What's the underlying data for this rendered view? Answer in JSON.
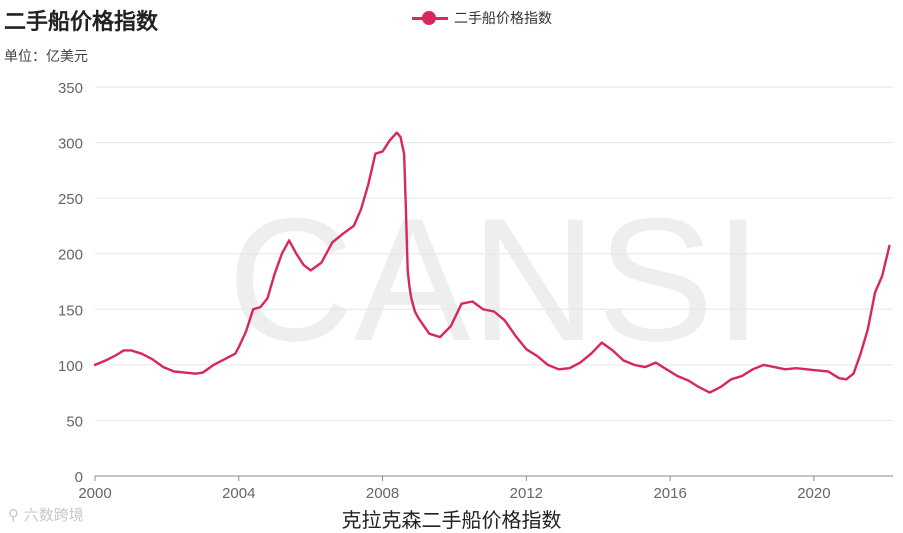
{
  "header": {
    "title": "二手船价格指数",
    "unit": "单位：亿美元",
    "caption": "克拉克森二手船价格指数",
    "watermark_logo": "六数跨境",
    "watermark_text": "CANSI"
  },
  "colors": {
    "series": "#d8275b",
    "grid": "#e6e6e6",
    "axis": "#888888",
    "watermark": "#eeeeee"
  },
  "chart_data": {
    "type": "line",
    "title": "二手船价格指数",
    "ylabel": "单位：亿美元",
    "ylim": [
      0,
      350
    ],
    "xlim": [
      2000,
      2022.2
    ],
    "yticks": [
      0,
      50,
      100,
      150,
      200,
      250,
      300,
      350
    ],
    "xticks": [
      2000,
      2004,
      2008,
      2012,
      2016,
      2020
    ],
    "grid": true,
    "legend_position": "top-center",
    "series": [
      {
        "name": "二手船价格指数",
        "x": [
          2000.0,
          2000.3,
          2000.6,
          2000.8,
          2001.0,
          2001.3,
          2001.6,
          2001.9,
          2002.2,
          2002.5,
          2002.8,
          2003.0,
          2003.3,
          2003.6,
          2003.9,
          2004.0,
          2004.2,
          2004.4,
          2004.6,
          2004.8,
          2005.0,
          2005.2,
          2005.4,
          2005.6,
          2005.8,
          2006.0,
          2006.3,
          2006.6,
          2006.9,
          2007.2,
          2007.4,
          2007.6,
          2007.8,
          2008.0,
          2008.2,
          2008.4,
          2008.5,
          2008.6,
          2008.65,
          2008.7,
          2008.75,
          2008.8,
          2008.9,
          2009.0,
          2009.3,
          2009.6,
          2009.9,
          2010.2,
          2010.5,
          2010.8,
          2011.1,
          2011.4,
          2011.7,
          2012.0,
          2012.3,
          2012.6,
          2012.9,
          2013.2,
          2013.5,
          2013.8,
          2014.1,
          2014.4,
          2014.7,
          2015.0,
          2015.3,
          2015.6,
          2015.9,
          2016.2,
          2016.5,
          2016.8,
          2017.1,
          2017.4,
          2017.7,
          2018.0,
          2018.3,
          2018.6,
          2018.9,
          2019.2,
          2019.5,
          2019.8,
          2020.1,
          2020.4,
          2020.7,
          2020.9,
          2021.1,
          2021.3,
          2021.5,
          2021.7,
          2021.9,
          2022.1
        ],
        "values": [
          100,
          104,
          109,
          113,
          113,
          110,
          105,
          98,
          94,
          93,
          92,
          93,
          100,
          105,
          110,
          116,
          130,
          150,
          152,
          160,
          182,
          200,
          212,
          200,
          190,
          185,
          192,
          210,
          218,
          225,
          240,
          262,
          290,
          292,
          302,
          309,
          305,
          290,
          240,
          185,
          170,
          160,
          148,
          142,
          128,
          125,
          135,
          155,
          157,
          150,
          148,
          140,
          126,
          114,
          108,
          100,
          96,
          97,
          102,
          110,
          120,
          113,
          104,
          100,
          98,
          102,
          96,
          90,
          86,
          80,
          75,
          80,
          87,
          90,
          96,
          100,
          98,
          96,
          97,
          96,
          95,
          94,
          88,
          87,
          92,
          110,
          132,
          165,
          180,
          207
        ]
      }
    ]
  }
}
